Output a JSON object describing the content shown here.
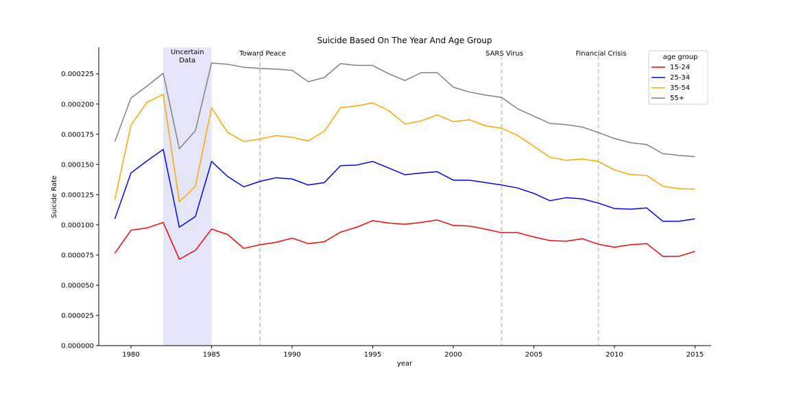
{
  "chart_data": {
    "type": "line",
    "title": "Suicide Based On The Year And Age Group",
    "xlabel": "year",
    "ylabel": "Suicide Rate",
    "xlim": [
      1978,
      2016
    ],
    "ylim": [
      0,
      0.000247
    ],
    "x_ticks": [
      1980,
      1985,
      1990,
      1995,
      2000,
      2005,
      2010,
      2015
    ],
    "x_tick_labels": [
      "1980",
      "1985",
      "1990",
      "1995",
      "2000",
      "2005",
      "2010",
      "2015"
    ],
    "y_ticks": [
      0,
      2.5e-05,
      5e-05,
      7.5e-05,
      0.0001,
      0.000125,
      0.00015,
      0.000175,
      0.0002,
      0.000225
    ],
    "y_tick_labels": [
      "0.000000",
      "0.000025",
      "0.000050",
      "0.000075",
      "0.000100",
      "0.000125",
      "0.000150",
      "0.000175",
      "0.000200",
      "0.000225"
    ],
    "grid": false,
    "legend": {
      "title": "age group",
      "position": "top-right"
    },
    "x": [
      1979,
      1980,
      1981,
      1982,
      1983,
      1984,
      1985,
      1986,
      1987,
      1988,
      1989,
      1990,
      1991,
      1992,
      1993,
      1994,
      1995,
      1996,
      1997,
      1998,
      1999,
      2000,
      2001,
      2002,
      2003,
      2004,
      2005,
      2006,
      2007,
      2008,
      2009,
      2010,
      2011,
      2012,
      2013,
      2014,
      2015
    ],
    "series": [
      {
        "name": "15-24",
        "color": "#ff0000",
        "values": [
          7.65e-05,
          9.55e-05,
          9.75e-05,
          0.000102,
          7.15e-05,
          7.9e-05,
          9.65e-05,
          9.2e-05,
          8.05e-05,
          8.35e-05,
          8.55e-05,
          8.9e-05,
          8.45e-05,
          8.6e-05,
          9.4e-05,
          9.8e-05,
          0.0001035,
          0.0001015,
          0.0001005,
          0.000102,
          0.000104,
          9.95e-05,
          9.9e-05,
          9.65e-05,
          9.35e-05,
          9.35e-05,
          9e-05,
          8.7e-05,
          8.65e-05,
          8.85e-05,
          8.4e-05,
          8.15e-05,
          8.35e-05,
          8.45e-05,
          7.4e-05,
          7.4e-05,
          7.8e-05
        ]
      },
      {
        "name": "25-34",
        "color": "#0000ff",
        "values": [
          0.000105,
          0.000143,
          0.000153,
          0.0001625,
          9.8e-05,
          0.000107,
          0.0001525,
          0.00014,
          0.0001315,
          0.000136,
          0.000139,
          0.000138,
          0.000133,
          0.000135,
          0.000149,
          0.0001495,
          0.0001525,
          0.000147,
          0.0001415,
          0.000143,
          0.000144,
          0.000137,
          0.000137,
          0.000135,
          0.000133,
          0.0001305,
          0.000126,
          0.00012,
          0.0001225,
          0.0001215,
          0.000118,
          0.0001135,
          0.000113,
          0.000114,
          0.000103,
          0.000103,
          0.000105
        ]
      },
      {
        "name": "35-54",
        "color": "#ffa500",
        "values": [
          0.000121,
          0.0001825,
          0.0002015,
          0.000208,
          0.000119,
          0.000132,
          0.000197,
          0.0001765,
          0.000169,
          0.000171,
          0.000174,
          0.0001725,
          0.0001695,
          0.0001775,
          0.000197,
          0.0001985,
          0.000201,
          0.0001945,
          0.0001835,
          0.000186,
          0.000191,
          0.0001855,
          0.000187,
          0.000182,
          0.00018,
          0.000174,
          0.000165,
          0.000156,
          0.0001535,
          0.0001545,
          0.0001525,
          0.0001455,
          0.0001415,
          0.000141,
          0.000132,
          0.00013,
          0.0001295
        ]
      },
      {
        "name": "55+",
        "color": "#808080",
        "values": [
          0.000169,
          0.000205,
          0.000215,
          0.0002255,
          0.000163,
          0.000178,
          0.000234,
          0.000233,
          0.0002305,
          0.0002295,
          0.000229,
          0.000228,
          0.0002185,
          0.000222,
          0.0002335,
          0.000232,
          0.000232,
          0.000225,
          0.0002195,
          0.000226,
          0.000226,
          0.000214,
          0.00021,
          0.0002075,
          0.0002055,
          0.000196,
          0.00019,
          0.000184,
          0.000183,
          0.000181,
          0.0001765,
          0.0001715,
          0.000168,
          0.0001665,
          0.000159,
          0.0001575,
          0.0001565
        ]
      }
    ],
    "shaded_span": {
      "x_start": 1982,
      "x_end": 1985,
      "color": "#e5e5f8",
      "label": [
        "Uncertain",
        "Data"
      ]
    },
    "vlines": [
      {
        "x": 1988,
        "label": "Toward Peace"
      },
      {
        "x": 2003,
        "label": "SARS Virus"
      },
      {
        "x": 2009,
        "label": "Financial Crisis"
      }
    ]
  }
}
